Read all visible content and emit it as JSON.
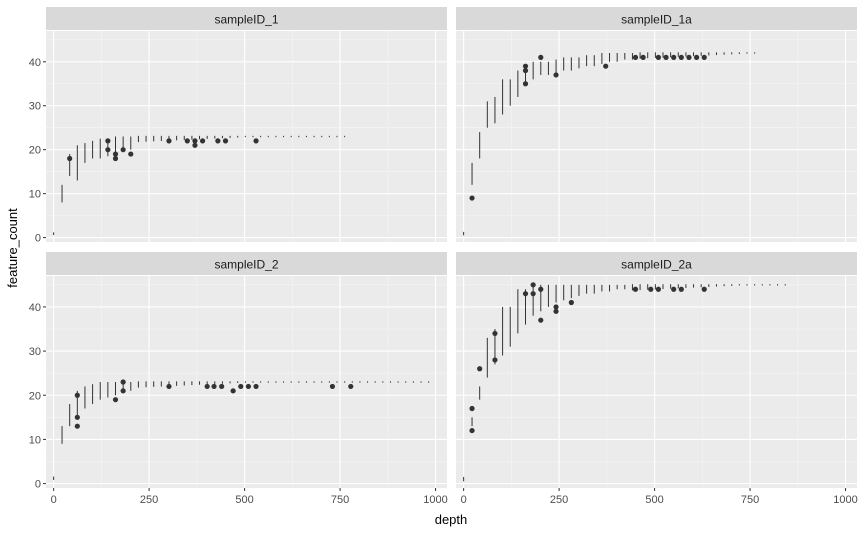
{
  "chart_data": {
    "type": "boxplot",
    "layout": "facet_wrap",
    "xlabel": "depth",
    "ylabel": "feature_count",
    "xlim": [
      -20,
      1030
    ],
    "ylim": [
      -1,
      47
    ],
    "x_ticks": [
      0,
      250,
      500,
      750,
      1000
    ],
    "y_ticks": [
      0,
      10,
      20,
      30,
      40
    ],
    "x_tick_labels": [
      "0",
      "250",
      "500",
      "750",
      "1000"
    ],
    "y_tick_labels": [
      "0",
      "10",
      "20",
      "30",
      "40"
    ],
    "grid": true,
    "panels": [
      {
        "name": "sampleID_1",
        "ceiling": 23,
        "max_depth": 780,
        "boxes": [
          {
            "x": 0,
            "low": 0.6,
            "high": 1.2
          },
          {
            "x": 22,
            "low": 8,
            "high": 12
          },
          {
            "x": 42,
            "low": 14,
            "high": 19
          },
          {
            "x": 62,
            "low": 13,
            "high": 21
          },
          {
            "x": 82,
            "low": 17,
            "high": 21.5
          },
          {
            "x": 102,
            "low": 18,
            "high": 22
          },
          {
            "x": 122,
            "low": 18,
            "high": 22.5
          },
          {
            "x": 142,
            "low": 18.5,
            "high": 22.5
          },
          {
            "x": 162,
            "low": 19,
            "high": 23
          },
          {
            "x": 182,
            "low": 19.5,
            "high": 23
          },
          {
            "x": 202,
            "low": 20,
            "high": 23
          }
        ],
        "outliers": [
          {
            "x": 42,
            "y": 18
          },
          {
            "x": 142,
            "y": 22
          },
          {
            "x": 142,
            "y": 20
          },
          {
            "x": 162,
            "y": 19
          },
          {
            "x": 162,
            "y": 18
          },
          {
            "x": 182,
            "y": 20
          },
          {
            "x": 202,
            "y": 19
          },
          {
            "x": 302,
            "y": 22
          },
          {
            "x": 350,
            "y": 22
          },
          {
            "x": 370,
            "y": 21
          },
          {
            "x": 370,
            "y": 22
          },
          {
            "x": 390,
            "y": 22
          },
          {
            "x": 430,
            "y": 22
          },
          {
            "x": 450,
            "y": 22
          },
          {
            "x": 530,
            "y": 22
          }
        ]
      },
      {
        "name": "sampleID_1a",
        "ceiling": 42,
        "max_depth": 780,
        "boxes": [
          {
            "x": 0,
            "low": 0.5,
            "high": 1.3
          },
          {
            "x": 22,
            "low": 12,
            "high": 17
          },
          {
            "x": 42,
            "low": 18,
            "high": 24
          },
          {
            "x": 62,
            "low": 25,
            "high": 31
          },
          {
            "x": 82,
            "low": 26,
            "high": 32
          },
          {
            "x": 102,
            "low": 28,
            "high": 36
          },
          {
            "x": 122,
            "low": 30,
            "high": 36
          },
          {
            "x": 142,
            "low": 32,
            "high": 38
          },
          {
            "x": 162,
            "low": 35,
            "high": 39
          },
          {
            "x": 182,
            "low": 36,
            "high": 40
          },
          {
            "x": 202,
            "low": 37,
            "high": 40
          },
          {
            "x": 222,
            "low": 37,
            "high": 40
          },
          {
            "x": 242,
            "low": 37.5,
            "high": 40.5
          },
          {
            "x": 262,
            "low": 38,
            "high": 41
          },
          {
            "x": 282,
            "low": 38,
            "high": 41
          },
          {
            "x": 302,
            "low": 38.5,
            "high": 41
          },
          {
            "x": 322,
            "low": 39,
            "high": 41.5
          },
          {
            "x": 342,
            "low": 39,
            "high": 41.5
          },
          {
            "x": 362,
            "low": 39.5,
            "high": 42
          },
          {
            "x": 382,
            "low": 40,
            "high": 42
          },
          {
            "x": 402,
            "low": 40,
            "high": 42
          },
          {
            "x": 422,
            "low": 40.5,
            "high": 42
          },
          {
            "x": 442,
            "low": 40.5,
            "high": 42
          }
        ],
        "outliers": [
          {
            "x": 22,
            "y": 9
          },
          {
            "x": 162,
            "y": 35
          },
          {
            "x": 162,
            "y": 38
          },
          {
            "x": 162,
            "y": 39
          },
          {
            "x": 202,
            "y": 41
          },
          {
            "x": 242,
            "y": 37
          },
          {
            "x": 372,
            "y": 39
          },
          {
            "x": 450,
            "y": 41
          },
          {
            "x": 470,
            "y": 41
          },
          {
            "x": 510,
            "y": 41
          },
          {
            "x": 530,
            "y": 41
          },
          {
            "x": 550,
            "y": 41
          },
          {
            "x": 570,
            "y": 41
          },
          {
            "x": 590,
            "y": 41
          },
          {
            "x": 610,
            "y": 41
          },
          {
            "x": 630,
            "y": 41
          }
        ]
      },
      {
        "name": "sampleID_2",
        "ceiling": 23,
        "max_depth": 1000,
        "boxes": [
          {
            "x": 0,
            "low": 0.8,
            "high": 1.6
          },
          {
            "x": 22,
            "low": 9,
            "high": 13
          },
          {
            "x": 42,
            "low": 13,
            "high": 18
          },
          {
            "x": 62,
            "low": 15,
            "high": 21
          },
          {
            "x": 82,
            "low": 17,
            "high": 22
          },
          {
            "x": 102,
            "low": 18,
            "high": 22.5
          },
          {
            "x": 122,
            "low": 19,
            "high": 23
          },
          {
            "x": 142,
            "low": 19.5,
            "high": 23
          },
          {
            "x": 162,
            "low": 20,
            "high": 23
          },
          {
            "x": 182,
            "low": 20.5,
            "high": 23
          },
          {
            "x": 202,
            "low": 21,
            "high": 23
          }
        ],
        "outliers": [
          {
            "x": 62,
            "y": 20
          },
          {
            "x": 62,
            "y": 15
          },
          {
            "x": 62,
            "y": 13
          },
          {
            "x": 162,
            "y": 19
          },
          {
            "x": 182,
            "y": 23
          },
          {
            "x": 182,
            "y": 21
          },
          {
            "x": 302,
            "y": 22
          },
          {
            "x": 402,
            "y": 22
          },
          {
            "x": 420,
            "y": 22
          },
          {
            "x": 440,
            "y": 22
          },
          {
            "x": 470,
            "y": 21
          },
          {
            "x": 490,
            "y": 22
          },
          {
            "x": 510,
            "y": 22
          },
          {
            "x": 530,
            "y": 22
          },
          {
            "x": 730,
            "y": 22
          },
          {
            "x": 778,
            "y": 22
          }
        ]
      },
      {
        "name": "sampleID_2a",
        "ceiling": 45,
        "max_depth": 860,
        "boxes": [
          {
            "x": 0,
            "low": 0.5,
            "high": 1.5
          },
          {
            "x": 22,
            "low": 13,
            "high": 15
          },
          {
            "x": 42,
            "low": 19,
            "high": 22
          },
          {
            "x": 62,
            "low": 24,
            "high": 33
          },
          {
            "x": 82,
            "low": 27,
            "high": 35
          },
          {
            "x": 102,
            "low": 29,
            "high": 40
          },
          {
            "x": 122,
            "low": 31,
            "high": 40
          },
          {
            "x": 142,
            "low": 34,
            "high": 44
          },
          {
            "x": 162,
            "low": 36,
            "high": 44
          },
          {
            "x": 182,
            "low": 38,
            "high": 45
          },
          {
            "x": 202,
            "low": 39,
            "high": 45
          },
          {
            "x": 222,
            "low": 40,
            "high": 45
          },
          {
            "x": 242,
            "low": 41,
            "high": 45
          },
          {
            "x": 262,
            "low": 41.5,
            "high": 45
          },
          {
            "x": 282,
            "low": 42,
            "high": 45
          },
          {
            "x": 302,
            "low": 42.5,
            "high": 45
          },
          {
            "x": 322,
            "low": 43,
            "high": 45
          },
          {
            "x": 342,
            "low": 43,
            "high": 45
          },
          {
            "x": 362,
            "low": 43.5,
            "high": 45
          },
          {
            "x": 382,
            "low": 43.5,
            "high": 45
          },
          {
            "x": 402,
            "low": 44,
            "high": 45
          },
          {
            "x": 422,
            "low": 44,
            "high": 45
          }
        ],
        "outliers": [
          {
            "x": 22,
            "y": 17
          },
          {
            "x": 22,
            "y": 12
          },
          {
            "x": 42,
            "y": 26
          },
          {
            "x": 82,
            "y": 34
          },
          {
            "x": 82,
            "y": 28
          },
          {
            "x": 162,
            "y": 43
          },
          {
            "x": 182,
            "y": 45
          },
          {
            "x": 182,
            "y": 43
          },
          {
            "x": 202,
            "y": 44
          },
          {
            "x": 202,
            "y": 37
          },
          {
            "x": 242,
            "y": 40
          },
          {
            "x": 242,
            "y": 39
          },
          {
            "x": 282,
            "y": 41
          },
          {
            "x": 450,
            "y": 44
          },
          {
            "x": 490,
            "y": 44
          },
          {
            "x": 510,
            "y": 44
          },
          {
            "x": 550,
            "y": 44
          },
          {
            "x": 570,
            "y": 44
          },
          {
            "x": 630,
            "y": 44
          }
        ]
      }
    ]
  }
}
